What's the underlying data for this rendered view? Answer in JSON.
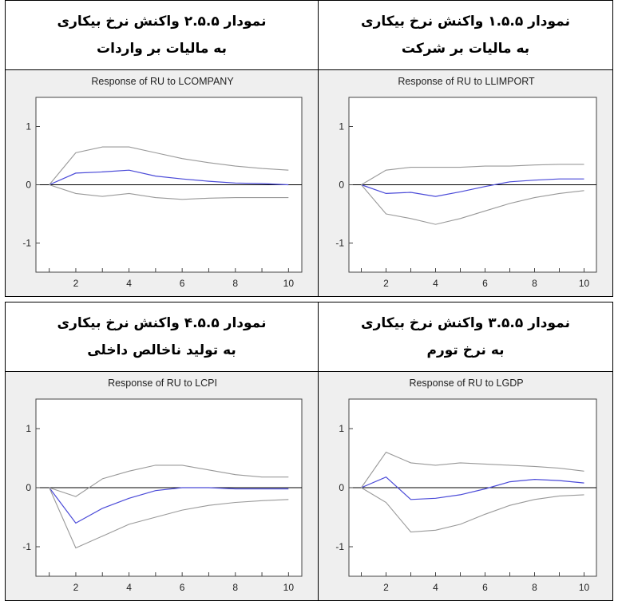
{
  "headers": [
    {
      "line1": "نمودار ۲.۵.۵ واکنش نرخ بیکاری",
      "line2": "به مالیات بر واردات"
    },
    {
      "line1": "نمودار ۱.۵.۵ واکنش نرخ بیکاری",
      "line2": "به مالیات بر شرکت"
    },
    {
      "line1": "نمودار ۴.۵.۵ واکنش نرخ بیکاری",
      "line2": "به تولید ناخالص داخلی"
    },
    {
      "line1": "نمودار ۳.۵.۵ واکنش نرخ بیکاری",
      "line2": "به نرخ تورم"
    }
  ],
  "colors": {
    "response": "#4a4ad8",
    "band": "#999999",
    "band_dotted": "#d05050",
    "zero": "#000000",
    "background": "#efefef"
  },
  "chart_data": [
    {
      "type": "line",
      "title": "Response of RU to LCOMPANY",
      "x": [
        1,
        2,
        3,
        4,
        5,
        6,
        7,
        8,
        9,
        10
      ],
      "xticks": [
        "2",
        "4",
        "6",
        "8",
        "10"
      ],
      "yticks": [
        "1",
        "0",
        "-1"
      ],
      "ylim": [
        -1.5,
        1.5
      ],
      "xlim": [
        0.5,
        10.5
      ],
      "series": [
        {
          "values": [
            0.0,
            0.2,
            0.22,
            0.25,
            0.15,
            0.1,
            0.06,
            0.03,
            0.02,
            0.0
          ]
        },
        {
          "values": [
            0.0,
            0.55,
            0.65,
            0.65,
            0.55,
            0.45,
            0.38,
            0.32,
            0.28,
            0.25
          ]
        },
        {
          "values": [
            0.0,
            -0.15,
            -0.2,
            -0.15,
            -0.22,
            -0.25,
            -0.23,
            -0.22,
            -0.22,
            -0.22
          ]
        }
      ]
    },
    {
      "type": "line",
      "title": "Response of RU to LLIMPORT",
      "x": [
        1,
        2,
        3,
        4,
        5,
        6,
        7,
        8,
        9,
        10
      ],
      "xticks": [
        "2",
        "4",
        "6",
        "8",
        "10"
      ],
      "yticks": [
        "1",
        "0",
        "-1"
      ],
      "ylim": [
        -1.5,
        1.5
      ],
      "xlim": [
        0.5,
        10.5
      ],
      "series": [
        {
          "values": [
            0.0,
            -0.15,
            -0.13,
            -0.2,
            -0.12,
            -0.03,
            0.05,
            0.08,
            0.1,
            0.1
          ]
        },
        {
          "values": [
            0.0,
            0.25,
            0.3,
            0.3,
            0.3,
            0.32,
            0.32,
            0.34,
            0.35,
            0.35
          ]
        },
        {
          "values": [
            0.0,
            -0.5,
            -0.58,
            -0.68,
            -0.58,
            -0.45,
            -0.32,
            -0.22,
            -0.15,
            -0.1
          ]
        }
      ]
    },
    {
      "type": "line",
      "title": "Response of RU to LCPI",
      "x": [
        1,
        2,
        3,
        4,
        5,
        6,
        7,
        8,
        9,
        10
      ],
      "xticks": [
        "2",
        "4",
        "6",
        "8",
        "10"
      ],
      "yticks": [
        "1",
        "0",
        "-1"
      ],
      "ylim": [
        -1.5,
        1.5
      ],
      "xlim": [
        0.5,
        10.5
      ],
      "series": [
        {
          "values": [
            0.0,
            -0.6,
            -0.35,
            -0.18,
            -0.05,
            0.0,
            0.0,
            -0.02,
            -0.02,
            -0.02
          ]
        },
        {
          "values": [
            0.0,
            -0.15,
            0.15,
            0.28,
            0.38,
            0.38,
            0.3,
            0.22,
            0.18,
            0.18
          ]
        },
        {
          "values": [
            0.0,
            -1.02,
            -0.82,
            -0.62,
            -0.5,
            -0.38,
            -0.3,
            -0.25,
            -0.22,
            -0.2
          ]
        }
      ]
    },
    {
      "type": "line",
      "title": "Response of RU to LGDP",
      "x": [
        1,
        2,
        3,
        4,
        5,
        6,
        7,
        8,
        9,
        10
      ],
      "xticks": [
        "2",
        "4",
        "6",
        "8",
        "10"
      ],
      "yticks": [
        "1",
        "0",
        "-1"
      ],
      "ylim": [
        -1.5,
        1.5
      ],
      "xlim": [
        0.5,
        10.5
      ],
      "series": [
        {
          "values": [
            0.0,
            0.18,
            -0.2,
            -0.18,
            -0.12,
            -0.02,
            0.1,
            0.14,
            0.12,
            0.08
          ]
        },
        {
          "values": [
            0.0,
            0.6,
            0.42,
            0.38,
            0.42,
            0.4,
            0.38,
            0.36,
            0.33,
            0.28
          ]
        },
        {
          "values": [
            0.0,
            -0.25,
            -0.75,
            -0.72,
            -0.62,
            -0.45,
            -0.3,
            -0.2,
            -0.14,
            -0.12
          ]
        }
      ]
    }
  ]
}
